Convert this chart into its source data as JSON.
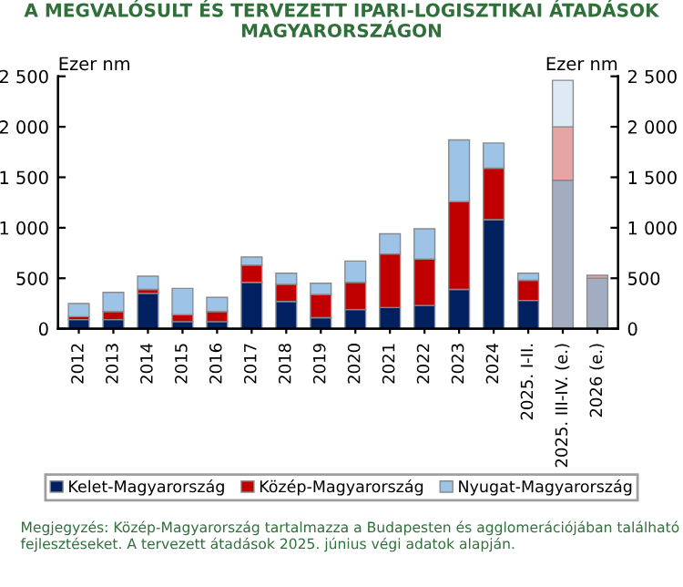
{
  "chart_data": {
    "type": "bar",
    "stacked": true,
    "title": "A MEGVALÓSULT ÉS TERVEZETT IPARI-LOGISZTIKAI ÁTADÁSOK MAGYARORSZÁGON",
    "ylabel": "Ezer nm",
    "y2label": "Ezer nm",
    "categories": [
      "2012",
      "2013",
      "2014",
      "2015",
      "2016",
      "2017",
      "2018",
      "2019",
      "2020",
      "2021",
      "2022",
      "2023",
      "2024",
      "2025. I-II.",
      "2025. III-IV. (e.)",
      "2026 (e.)"
    ],
    "series": [
      {
        "name": "Kelet-Magyarország",
        "color": "#002060",
        "colors": [
          "#002060",
          "#002060",
          "#002060",
          "#002060",
          "#002060",
          "#002060",
          "#002060",
          "#002060",
          "#002060",
          "#002060",
          "#002060",
          "#002060",
          "#002060",
          "#002060",
          "#a3adc2",
          "#a3adc2"
        ],
        "values": [
          90,
          90,
          350,
          70,
          70,
          460,
          270,
          110,
          190,
          210,
          230,
          390,
          1080,
          280,
          1470,
          500
        ]
      },
      {
        "name": "Közép-Magyarország",
        "color": "#c00000",
        "colors": [
          "#c00000",
          "#c00000",
          "#c00000",
          "#c00000",
          "#c00000",
          "#c00000",
          "#c00000",
          "#c00000",
          "#c00000",
          "#c00000",
          "#c00000",
          "#c00000",
          "#c00000",
          "#c00000",
          "#e6a5a5",
          "#e6a5a5"
        ],
        "values": [
          30,
          80,
          40,
          70,
          100,
          170,
          170,
          230,
          270,
          530,
          460,
          870,
          510,
          200,
          530,
          30
        ]
      },
      {
        "name": "Nyugat-Magyarország",
        "color": "#9dc3e6",
        "colors": [
          "#9dc3e6",
          "#9dc3e6",
          "#9dc3e6",
          "#9dc3e6",
          "#9dc3e6",
          "#9dc3e6",
          "#9dc3e6",
          "#9dc3e6",
          "#9dc3e6",
          "#9dc3e6",
          "#9dc3e6",
          "#9dc3e6",
          "#9dc3e6",
          "#9dc3e6",
          "#dde9f5",
          "#dde9f5"
        ],
        "values": [
          130,
          190,
          130,
          260,
          140,
          80,
          110,
          110,
          210,
          200,
          300,
          610,
          250,
          70,
          460,
          0
        ]
      }
    ],
    "ylim": [
      0,
      2500
    ],
    "yticks": [
      0,
      {
        "value": 500,
        "label": "500"
      },
      {
        "value": 1000,
        "label": "1 000"
      },
      {
        "value": 1500,
        "label": "1 500"
      },
      {
        "value": 2000,
        "label": "2 000"
      },
      {
        "value": 2500,
        "label": "2 500"
      }
    ],
    "y2lim": [
      0,
      2500
    ],
    "y2ticks": [
      0,
      {
        "value": 500,
        "label": "500"
      },
      {
        "value": 1000,
        "label": "1 000"
      },
      {
        "value": 1500,
        "label": "1 500"
      },
      {
        "value": 2000,
        "label": "2 000"
      },
      {
        "value": 2500,
        "label": "2 500"
      }
    ],
    "legend": "bottom",
    "annotations": [
      "Megjegyzés: Közép-Magyarország tartalmazza a Budapesten és agglomerációjában található fejlesztéseket. A tervezett átadások 2025. június végi adatok alapján."
    ]
  }
}
